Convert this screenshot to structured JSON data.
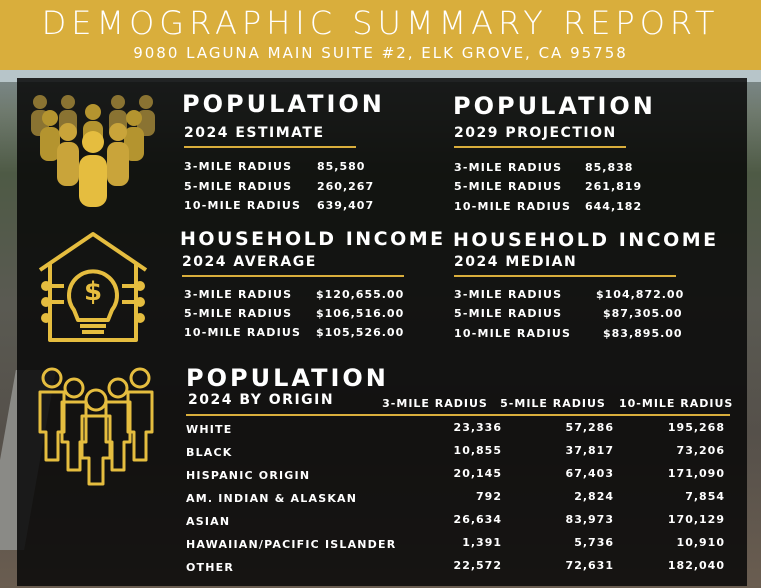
{
  "header": {
    "title": "DEMOGRAPHIC SUMMARY REPORT",
    "address": "9080 LAGUNA MAIN SUITE #2, ELK GROVE, CA 95758"
  },
  "colors": {
    "accent": "#d9ae3c",
    "panel": "#0a0a0a",
    "text": "#ffffff"
  },
  "pop_2024": {
    "title": "POPULATION",
    "subtitle": "2024 ESTIMATE",
    "rows": [
      {
        "label": "3-MILE RADIUS",
        "value": "85,580"
      },
      {
        "label": "5-MILE RADIUS",
        "value": "260,267"
      },
      {
        "label": "10-MILE RADIUS",
        "value": "639,407"
      }
    ]
  },
  "pop_2029": {
    "title": "POPULATION",
    "subtitle": "2029 PROJECTION",
    "rows": [
      {
        "label": "3-MILE RADIUS",
        "value": "85,838"
      },
      {
        "label": "5-MILE RADIUS",
        "value": "261,819"
      },
      {
        "label": "10-MILE RADIUS",
        "value": "644,182"
      }
    ]
  },
  "income_avg": {
    "title": "HOUSEHOLD INCOME",
    "subtitle": "2024 AVERAGE",
    "rows": [
      {
        "label": "3-MILE RADIUS",
        "value": "$120,655.00"
      },
      {
        "label": "5-MILE RADIUS",
        "value": "$106,516.00"
      },
      {
        "label": "10-MILE RADIUS",
        "value": "$105,526.00"
      }
    ]
  },
  "income_median": {
    "title": "HOUSEHOLD INCOME",
    "subtitle": "2024 MEDIAN",
    "rows": [
      {
        "label": "3-MILE RADIUS",
        "value": "$104,872.00"
      },
      {
        "label": "5-MILE RADIUS",
        "value": "$87,305.00"
      },
      {
        "label": "10-MILE RADIUS",
        "value": "$83,895.00"
      }
    ]
  },
  "origin": {
    "title": "POPULATION",
    "subtitle": "2024 BY ORIGIN",
    "columns": [
      "3-MILE RADIUS",
      "5-MILE RADIUS",
      "10-MILE RADIUS"
    ],
    "rows": [
      {
        "label": "WHITE",
        "values": [
          "23,336",
          "57,286",
          "195,268"
        ]
      },
      {
        "label": "BLACK",
        "values": [
          "10,855",
          "37,817",
          "73,206"
        ]
      },
      {
        "label": "HISPANIC ORIGIN",
        "values": [
          "20,145",
          "67,403",
          "171,090"
        ]
      },
      {
        "label": "AM. INDIAN & ALASKAN",
        "values": [
          "792",
          "2,824",
          "7,854"
        ]
      },
      {
        "label": "ASIAN",
        "values": [
          "26,634",
          "83,973",
          "170,129"
        ]
      },
      {
        "label": "HAWAIIAN/PACIFIC ISLANDER",
        "values": [
          "1,391",
          "5,736",
          "10,910"
        ]
      },
      {
        "label": "OTHER",
        "values": [
          "22,572",
          "72,631",
          "182,040"
        ]
      }
    ]
  },
  "icons": {
    "population": "people-group-icon",
    "income": "house-dollar-lightbulb-icon",
    "origin": "people-outline-group-icon"
  }
}
